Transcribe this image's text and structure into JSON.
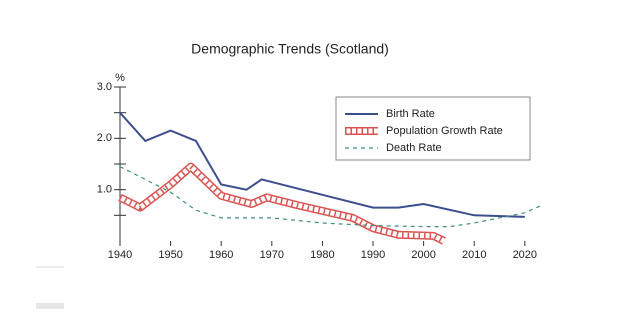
{
  "chart_data": {
    "type": "line",
    "title": "Demographic Trends (Scotland)",
    "ylabel": "%",
    "xlim": [
      1940,
      2023
    ],
    "xticks": [
      1940,
      1950,
      1960,
      1970,
      1980,
      1990,
      2000,
      2010,
      2020
    ],
    "ylim": [
      0,
      3
    ],
    "yticks": [
      {
        "value": 1,
        "label": "1.0"
      },
      {
        "value": 2,
        "label": "2.0"
      },
      {
        "value": 3,
        "label": "3.0"
      }
    ],
    "yminorticks": [
      0.5,
      1.5,
      2.5
    ],
    "series": [
      {
        "name": "Birth Rate",
        "color": "#3b4f8f",
        "style": "solid",
        "x": [
          1940,
          1945,
          1950,
          1955,
          1960,
          1965,
          1968,
          1980,
          1990,
          1995,
          2000,
          2010,
          2020
        ],
        "values": [
          2.5,
          1.95,
          2.15,
          1.95,
          1.1,
          1.0,
          1.2,
          0.9,
          0.65,
          0.65,
          0.72,
          0.5,
          0.47
        ]
      },
      {
        "name": "Population Growth Rate",
        "color": "#d9534f",
        "style": "hatched",
        "x": [
          1940,
          1944,
          1950,
          1954,
          1960,
          1966,
          1969,
          1975,
          1986,
          1990,
          1995,
          2002,
          2004
        ],
        "values": [
          0.85,
          0.65,
          1.1,
          1.45,
          0.88,
          0.72,
          0.85,
          0.7,
          0.45,
          0.25,
          0.12,
          0.1,
          0
        ]
      },
      {
        "name": "Death Rate",
        "color": "#3f8f83",
        "style": "dashed",
        "x": [
          1940,
          1950,
          1955,
          1960,
          1970,
          1980,
          1990,
          2000,
          2005,
          2010,
          2020,
          2023
        ],
        "values": [
          1.45,
          0.95,
          0.6,
          0.45,
          0.45,
          0.35,
          0.3,
          0.28,
          0.28,
          0.35,
          0.55,
          0.68
        ]
      }
    ]
  }
}
